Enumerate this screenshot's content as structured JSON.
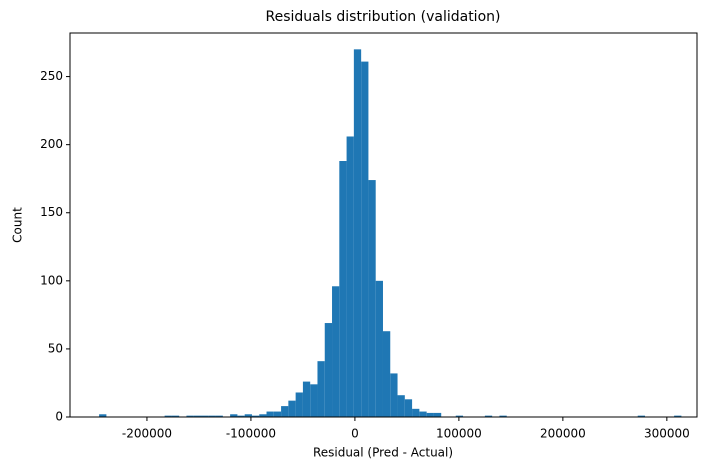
{
  "chart_data": {
    "type": "histogram",
    "title": "Residuals distribution (validation)",
    "xlabel": "Residual (Pred - Actual)",
    "ylabel": "Count",
    "color": "#1f77b4",
    "bins": [
      -246000,
      -239000,
      -232000,
      -225000,
      -218000,
      -211000,
      -204000,
      -197000,
      -190000,
      -183000,
      -176000,
      -169000,
      -162000,
      -155000,
      -148000,
      -141000,
      -134000,
      -127000,
      -120000,
      -113000,
      -106000,
      -99000,
      -92000,
      -85000,
      -78000,
      -71000,
      -64000,
      -57000,
      -50000,
      -43000,
      -36000,
      -29000,
      -22000,
      -15000,
      -8000,
      -1000,
      6000,
      13000,
      20000,
      27000,
      34000,
      41000,
      48000,
      55000,
      62000,
      69000,
      76000,
      83000,
      90000,
      97000,
      104000,
      111000,
      118000,
      125000,
      132000,
      139000,
      146000,
      153000,
      160000,
      167000,
      174000,
      181000,
      188000,
      195000,
      202000,
      209000,
      216000,
      223000,
      230000,
      237000,
      244000,
      251000,
      258000,
      265000,
      272000,
      279000,
      286000,
      293000,
      300000,
      307000,
      314000
    ],
    "values": [
      2,
      0,
      0,
      0,
      0,
      0,
      0,
      0,
      0,
      1,
      1,
      0,
      1,
      1,
      1,
      1,
      1,
      0,
      2,
      1,
      2,
      1,
      2,
      4,
      4,
      8,
      12,
      18,
      26,
      24,
      41,
      69,
      96,
      188,
      206,
      270,
      261,
      174,
      100,
      63,
      32,
      16,
      13,
      6,
      4,
      3,
      3,
      0,
      0,
      1,
      0,
      0,
      0,
      1,
      0,
      1,
      0,
      0,
      0,
      0,
      0,
      0,
      0,
      0,
      0,
      0,
      0,
      0,
      0,
      0,
      0,
      0,
      0,
      0,
      1,
      0,
      0,
      0,
      0,
      1
    ],
    "xlim": [
      -274000,
      329000
    ],
    "xticks": [
      -200000,
      -100000,
      0,
      100000,
      200000,
      300000
    ],
    "ylim": [
      0,
      282
    ],
    "yticks": [
      0,
      50,
      100,
      150,
      200,
      250
    ]
  }
}
